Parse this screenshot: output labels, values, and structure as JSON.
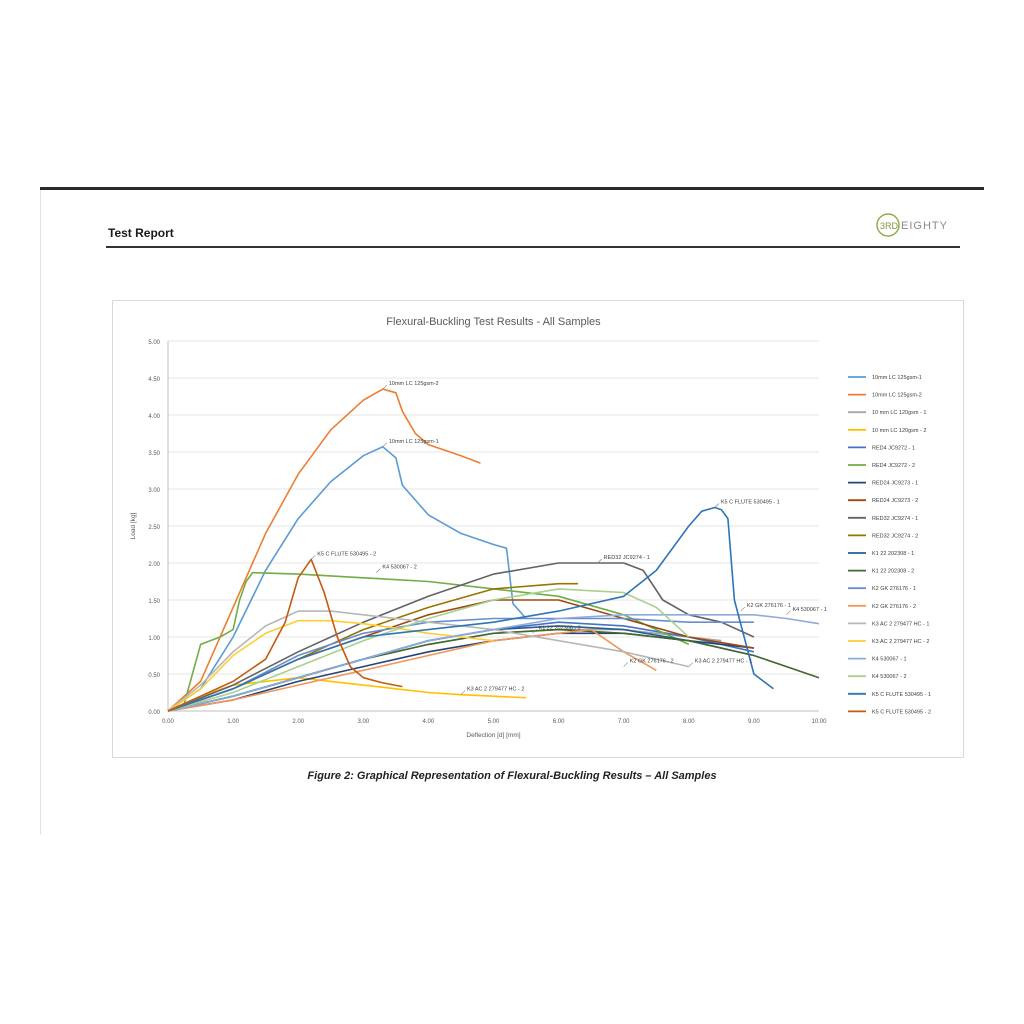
{
  "header": {
    "title": "Test Report",
    "logo_text": "3RD EIGHTY"
  },
  "caption": "Figure 2: Graphical Representation of Flexural-Buckling Results – All Samples",
  "chart_data": {
    "type": "line",
    "title": "Flexural-Buckling Test Results - All Samples",
    "xlabel": "Deflection [d] [mm]",
    "ylabel": "Load [kg]",
    "xlim": [
      0,
      10
    ],
    "ylim": [
      0,
      5
    ],
    "xticks": [
      "0.00",
      "1.00",
      "2.00",
      "3.00",
      "4.00",
      "5.00",
      "6.00",
      "7.00",
      "8.00",
      "9.00",
      "10.00"
    ],
    "yticks": [
      "0.00",
      "0.50",
      "1.00",
      "1.50",
      "2.00",
      "2.50",
      "3.00",
      "3.50",
      "4.00",
      "4.50",
      "5.00"
    ],
    "grid": true,
    "legend_position": "right",
    "series": [
      {
        "name": "10mm LC 125gsm-1",
        "color": "#5b9bd5",
        "x": [
          0,
          0.5,
          1,
          1.5,
          2,
          2.5,
          3,
          3.3,
          3.5,
          3.6,
          3.8,
          4,
          4.5,
          5,
          5.2,
          5.3,
          5.5
        ],
        "y": [
          0,
          0.3,
          1,
          1.9,
          2.6,
          3.1,
          3.45,
          3.57,
          3.42,
          3.05,
          2.85,
          2.65,
          2.4,
          2.25,
          2.2,
          1.45,
          1.25
        ]
      },
      {
        "name": "10mm LC 125gsm-2",
        "color": "#ed7d31",
        "x": [
          0,
          0.5,
          1,
          1.5,
          2,
          2.5,
          3,
          3.3,
          3.5,
          3.6,
          3.8,
          4,
          4.5,
          4.8
        ],
        "y": [
          0,
          0.4,
          1.4,
          2.4,
          3.2,
          3.8,
          4.2,
          4.35,
          4.3,
          4.05,
          3.75,
          3.6,
          3.45,
          3.35
        ]
      },
      {
        "name": "10 mm LC 120gsm - 1",
        "color": "#a5a5a5",
        "x": [
          0,
          1,
          2,
          3,
          4,
          5,
          6,
          7,
          8,
          8.5
        ],
        "y": [
          0,
          0.2,
          0.45,
          0.7,
          0.9,
          1.05,
          1.1,
          1.1,
          1.0,
          0.95
        ]
      },
      {
        "name": "10 mm LC 120gsm - 2",
        "color": "#ffc000",
        "x": [
          0,
          0.5,
          1,
          1.5,
          2,
          2.5,
          3,
          3.5,
          4,
          4.5,
          5,
          5.5
        ],
        "y": [
          0,
          0.2,
          0.35,
          0.4,
          0.45,
          0.4,
          0.35,
          0.3,
          0.25,
          0.22,
          0.2,
          0.18
        ]
      },
      {
        "name": "RED4 JC9272 - 1",
        "color": "#4472c4",
        "x": [
          0,
          1,
          2,
          3,
          4,
          5,
          6,
          7,
          8,
          9
        ],
        "y": [
          0,
          0.2,
          0.45,
          0.7,
          0.95,
          1.1,
          1.2,
          1.15,
          1.0,
          0.8
        ]
      },
      {
        "name": "RED4 JC9272 - 2",
        "color": "#70ad47",
        "x": [
          0,
          0.25,
          0.5,
          0.8,
          1,
          1.1,
          1.2,
          1.3,
          2,
          3,
          4,
          5,
          6,
          7,
          8
        ],
        "y": [
          0,
          0.1,
          0.9,
          1.0,
          1.1,
          1.5,
          1.75,
          1.87,
          1.85,
          1.8,
          1.75,
          1.65,
          1.55,
          1.3,
          0.9
        ]
      },
      {
        "name": "RED24 JC9273 - 1",
        "color": "#264478",
        "x": [
          0,
          1,
          2,
          3,
          4,
          5,
          6,
          7,
          8,
          9
        ],
        "y": [
          0,
          0.15,
          0.4,
          0.6,
          0.8,
          0.95,
          1.05,
          1.05,
          0.95,
          0.85
        ]
      },
      {
        "name": "RED24 JC9273 - 2",
        "color": "#9e480e",
        "x": [
          0,
          1,
          2,
          3,
          4,
          5,
          6,
          7,
          8,
          9
        ],
        "y": [
          0,
          0.3,
          0.7,
          1.0,
          1.3,
          1.5,
          1.5,
          1.25,
          1.0,
          0.85
        ]
      },
      {
        "name": "RED32 JC9274 - 1",
        "color": "#636363",
        "x": [
          0,
          1,
          2,
          3,
          4,
          5,
          6,
          7,
          7.3,
          7.6,
          8,
          8.5,
          9
        ],
        "y": [
          0,
          0.35,
          0.8,
          1.2,
          1.55,
          1.85,
          2.0,
          2.0,
          1.9,
          1.5,
          1.3,
          1.2,
          1.0
        ]
      },
      {
        "name": "RED32 JC9274 - 2",
        "color": "#997300",
        "x": [
          0,
          1,
          2,
          3,
          4,
          5,
          6,
          6.3
        ],
        "y": [
          0,
          0.3,
          0.7,
          1.1,
          1.4,
          1.65,
          1.72,
          1.72
        ]
      },
      {
        "name": "K1 22 202308 - 1",
        "color": "#255e91",
        "x": [
          0,
          1,
          2,
          3,
          4,
          5,
          6,
          7,
          8,
          9
        ],
        "y": [
          0,
          0.2,
          0.45,
          0.7,
          0.95,
          1.1,
          1.15,
          1.1,
          0.95,
          0.75
        ]
      },
      {
        "name": "K1 22 202308 - 2",
        "color": "#43682b",
        "x": [
          0,
          1,
          2,
          3,
          4,
          5,
          6,
          7,
          8,
          9,
          10
        ],
        "y": [
          0,
          0.2,
          0.45,
          0.7,
          0.9,
          1.05,
          1.1,
          1.05,
          0.95,
          0.75,
          0.45
        ]
      },
      {
        "name": "K2 GK 276176 - 1",
        "color": "#698ed0",
        "x": [
          0,
          1,
          2,
          3,
          4,
          5,
          6,
          7,
          8,
          9
        ],
        "y": [
          0,
          0.3,
          0.75,
          1.05,
          1.2,
          1.25,
          1.25,
          1.25,
          1.2,
          1.2
        ]
      },
      {
        "name": "K2 GK 276176 - 2",
        "color": "#f1975a",
        "x": [
          0,
          1,
          2,
          3,
          4,
          5,
          6,
          6.5,
          7,
          7.5
        ],
        "y": [
          0,
          0.15,
          0.35,
          0.55,
          0.75,
          0.95,
          1.05,
          1.1,
          0.8,
          0.55
        ]
      },
      {
        "name": "K3 AC 2 279477 HC - 1",
        "color": "#b7b7b7",
        "x": [
          0,
          0.5,
          1,
          1.5,
          2,
          2.5,
          3,
          3.5,
          4,
          5,
          6,
          7,
          8
        ],
        "y": [
          0,
          0.35,
          0.8,
          1.15,
          1.35,
          1.35,
          1.3,
          1.25,
          1.2,
          1.1,
          0.95,
          0.8,
          0.6
        ]
      },
      {
        "name": "K3 AC 2 279477 HC - 2",
        "color": "#ffcd33",
        "x": [
          0,
          0.5,
          1,
          1.5,
          2,
          2.5,
          3,
          3.5,
          4,
          4.5,
          5
        ],
        "y": [
          0,
          0.3,
          0.75,
          1.05,
          1.22,
          1.22,
          1.18,
          1.12,
          1.05,
          1.0,
          0.95
        ]
      },
      {
        "name": "K4 530067 - 1",
        "color": "#8faadc",
        "x": [
          0,
          1,
          2,
          3,
          4,
          5,
          6,
          7,
          8,
          9,
          9.5,
          10
        ],
        "y": [
          0,
          0.2,
          0.45,
          0.7,
          0.95,
          1.1,
          1.25,
          1.3,
          1.3,
          1.3,
          1.25,
          1.18
        ]
      },
      {
        "name": "K4 530067 - 2",
        "color": "#a9d18e",
        "x": [
          0,
          1,
          2,
          3,
          4,
          5,
          6,
          7,
          7.5,
          8
        ],
        "y": [
          0,
          0.25,
          0.6,
          0.95,
          1.25,
          1.5,
          1.65,
          1.6,
          1.4,
          1.0
        ]
      },
      {
        "name": "K5 C FLUTE 530495 - 1",
        "color": "#2e75b6",
        "x": [
          0,
          1,
          2,
          3,
          4,
          5,
          6,
          7,
          7.5,
          8,
          8.2,
          8.4,
          8.5,
          8.6,
          8.7,
          9,
          9.3
        ],
        "y": [
          0,
          0.3,
          0.7,
          1.0,
          1.1,
          1.2,
          1.35,
          1.55,
          1.9,
          2.5,
          2.7,
          2.75,
          2.72,
          2.6,
          1.5,
          0.5,
          0.3
        ]
      },
      {
        "name": "K5 C FLUTE 530495 - 2",
        "color": "#c55a11",
        "x": [
          0,
          0.5,
          1,
          1.5,
          1.8,
          2.0,
          2.2,
          2.4,
          2.6,
          2.8,
          3.0,
          3.3,
          3.6
        ],
        "y": [
          0,
          0.2,
          0.4,
          0.7,
          1.2,
          1.8,
          2.05,
          1.6,
          1.0,
          0.6,
          0.45,
          0.38,
          0.33
        ]
      }
    ],
    "annotations": [
      {
        "text": "10mm LC 125gsm-2",
        "x": 3.3,
        "y": 4.35
      },
      {
        "text": "10mm LC 125gsm-1",
        "x": 3.3,
        "y": 3.57
      },
      {
        "text": "K5 C FLUTE 530495 - 2",
        "x": 2.2,
        "y": 2.05
      },
      {
        "text": "K4 530067 - 2",
        "x": 3.2,
        "y": 1.87
      },
      {
        "text": "K5 C FLUTE 530495 - 1",
        "x": 8.4,
        "y": 2.75
      },
      {
        "text": "RED32 JC9274 - 1",
        "x": 6.6,
        "y": 2.0
      },
      {
        "text": "K2 GK 276176 - 1",
        "x": 8.8,
        "y": 1.35
      },
      {
        "text": "K4 530067 - 1",
        "x": 9.5,
        "y": 1.3
      },
      {
        "text": "K1 22 202308 - 2",
        "x": 5.6,
        "y": 1.05
      },
      {
        "text": "K3 AC 2 279477 HC - 2",
        "x": 4.5,
        "y": 0.22
      },
      {
        "text": "K2 GK 276176 - 2",
        "x": 7.0,
        "y": 0.6
      },
      {
        "text": "K3 AC 2 279477 HC - 1",
        "x": 8.0,
        "y": 0.6
      }
    ]
  }
}
